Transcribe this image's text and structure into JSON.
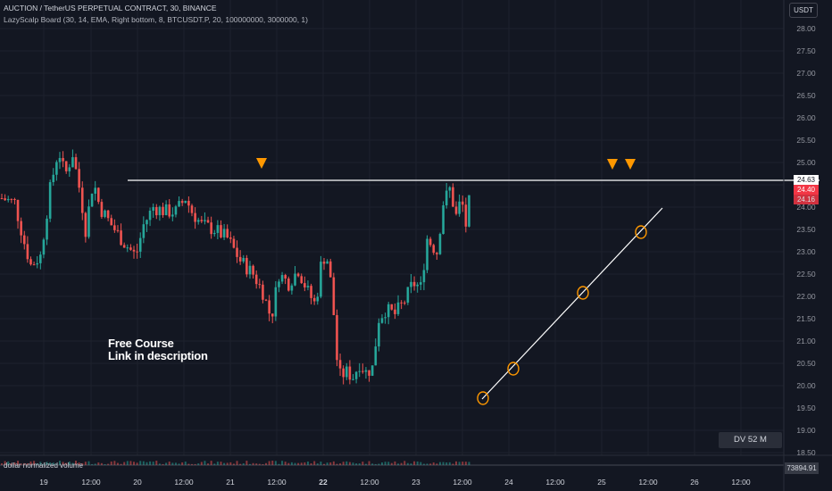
{
  "header": {
    "symbol": "AUCTION / TetherUS PERPETUAL CONTRACT, 30, BINANCE",
    "indicator": "LazyScalp Board (30, 14, EMA, Right bottom, 8, BTCUSDT.P, 20, 100000000, 3000000, 1)",
    "currency": "USDT"
  },
  "annotations": {
    "course_line1": "Free Course",
    "course_line2": "Link in description",
    "dv_box": "DV 52 M"
  },
  "volume_pane": {
    "label": "dollar normalized volume",
    "value": "73894.91"
  },
  "price_labels": [
    "24.63",
    "24.40",
    "24.16"
  ],
  "colors": {
    "background": "#131722",
    "up": "#26a69a",
    "down": "#ef5350",
    "resistance_line": "#ffffff",
    "marker": "#ff9800"
  },
  "chart_data": {
    "type": "candlestick",
    "y_axis_ticks": [
      "28.00",
      "27.50",
      "27.00",
      "26.50",
      "26.00",
      "25.50",
      "25.00",
      "24.50",
      "24.00",
      "23.50",
      "23.00",
      "22.50",
      "22.00",
      "21.50",
      "21.00",
      "20.50",
      "20.00",
      "19.50",
      "19.00",
      "18.50"
    ],
    "ylim": [
      18.35,
      28.5
    ],
    "x_axis_ticks": [
      "19",
      "12:00",
      "20",
      "12:00",
      "21",
      "12:00",
      "22",
      "12:00",
      "23",
      "12:00",
      "24",
      "12:00",
      "25",
      "12:00",
      "26",
      "12:00"
    ],
    "resistance_level": 24.63,
    "last_price": 24.4,
    "close_path": [
      {
        "t": 0.0,
        "v": 24.2
      },
      {
        "t": 2.0,
        "v": 24.1
      },
      {
        "t": 3.5,
        "v": 23.2
      },
      {
        "t": 4.5,
        "v": 22.7
      },
      {
        "t": 6.0,
        "v": 22.9
      },
      {
        "t": 7.5,
        "v": 24.4
      },
      {
        "t": 8.8,
        "v": 25.3
      },
      {
        "t": 9.8,
        "v": 24.7
      },
      {
        "t": 11.0,
        "v": 25.2
      },
      {
        "t": 12.2,
        "v": 24.3
      },
      {
        "t": 13.0,
        "v": 23.5
      },
      {
        "t": 14.2,
        "v": 24.6
      },
      {
        "t": 15.2,
        "v": 24.0
      },
      {
        "t": 17.0,
        "v": 23.6
      },
      {
        "t": 19.0,
        "v": 23.2
      },
      {
        "t": 20.8,
        "v": 22.9
      },
      {
        "t": 22.0,
        "v": 23.6
      },
      {
        "t": 23.5,
        "v": 24.0
      },
      {
        "t": 25.5,
        "v": 23.9
      },
      {
        "t": 27.0,
        "v": 23.9
      },
      {
        "t": 28.5,
        "v": 24.2
      },
      {
        "t": 29.5,
        "v": 23.9
      },
      {
        "t": 31.0,
        "v": 23.6
      },
      {
        "t": 33.0,
        "v": 23.5
      },
      {
        "t": 35.0,
        "v": 23.3
      },
      {
        "t": 37.0,
        "v": 22.8
      },
      {
        "t": 39.0,
        "v": 22.5
      },
      {
        "t": 40.5,
        "v": 22.1
      },
      {
        "t": 41.8,
        "v": 21.5
      },
      {
        "t": 43.0,
        "v": 22.5
      },
      {
        "t": 44.5,
        "v": 22.3
      },
      {
        "t": 46.0,
        "v": 22.6
      },
      {
        "t": 47.5,
        "v": 22.1
      },
      {
        "t": 48.7,
        "v": 21.8
      },
      {
        "t": 49.7,
        "v": 22.9
      },
      {
        "t": 50.7,
        "v": 22.8
      },
      {
        "t": 51.5,
        "v": 21.6
      },
      {
        "t": 52.2,
        "v": 20.2
      },
      {
        "t": 53.5,
        "v": 20.3
      },
      {
        "t": 54.5,
        "v": 20.2
      },
      {
        "t": 55.5,
        "v": 20.5
      },
      {
        "t": 56.5,
        "v": 20.3
      },
      {
        "t": 57.5,
        "v": 20.4
      },
      {
        "t": 58.5,
        "v": 21.5
      },
      {
        "t": 59.5,
        "v": 21.7
      },
      {
        "t": 61.0,
        "v": 21.6
      },
      {
        "t": 62.5,
        "v": 21.9
      },
      {
        "t": 63.8,
        "v": 22.3
      },
      {
        "t": 65.0,
        "v": 22.2
      },
      {
        "t": 66.0,
        "v": 23.3
      },
      {
        "t": 67.5,
        "v": 23.0
      },
      {
        "t": 68.5,
        "v": 24.1
      },
      {
        "t": 69.5,
        "v": 24.4
      },
      {
        "t": 70.5,
        "v": 23.8
      },
      {
        "t": 71.3,
        "v": 24.2
      },
      {
        "t": 72.0,
        "v": 23.6
      },
      {
        "t": 72.8,
        "v": 24.4
      }
    ]
  }
}
